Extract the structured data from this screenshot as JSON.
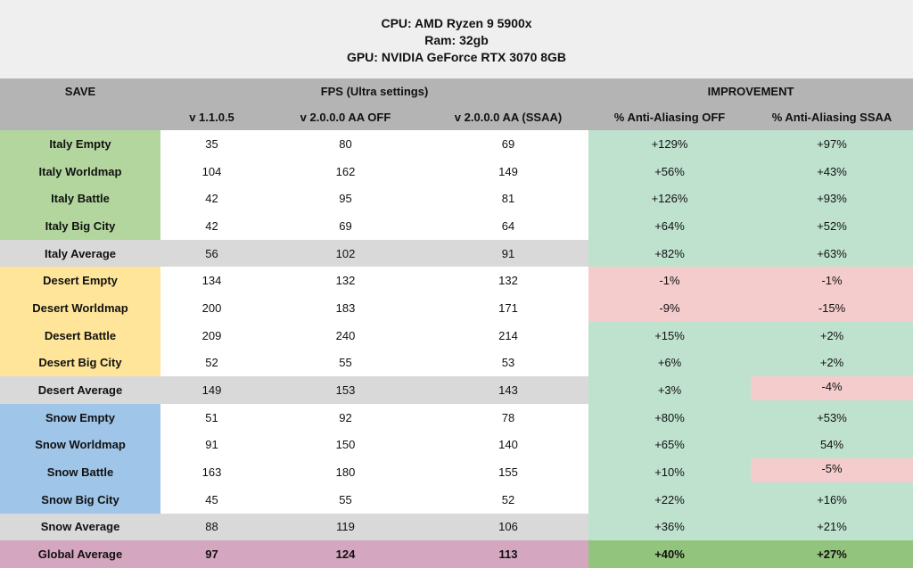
{
  "specs": {
    "cpu": "CPU: AMD Ryzen 9 5900x",
    "ram": "Ram: 32gb",
    "gpu": "GPU: NVIDIA GeForce RTX 3070 8GB"
  },
  "table": {
    "header_groups": {
      "save": "SAVE",
      "fps": "FPS (Ultra settings)",
      "improvement": "IMPROVEMENT"
    },
    "columns": [
      "v 1.1.0.5",
      "v 2.0.0.0 AA OFF",
      "v 2.0.0.0 AA (SSAA)",
      "% Anti-Aliasing OFF",
      "% Anti-Aliasing SSAA"
    ],
    "rows": [
      {
        "label": "Italy Empty",
        "group": "italy",
        "type": "data",
        "fps": [
          "35",
          "80",
          "69"
        ],
        "imp": [
          {
            "value": "+129%",
            "state": "pos"
          },
          {
            "value": "+97%",
            "state": "pos"
          }
        ]
      },
      {
        "label": "Italy Worldmap",
        "group": "italy",
        "type": "data",
        "fps": [
          "104",
          "162",
          "149"
        ],
        "imp": [
          {
            "value": "+56%",
            "state": "pos"
          },
          {
            "value": "+43%",
            "state": "pos"
          }
        ]
      },
      {
        "label": "Italy Battle",
        "group": "italy",
        "type": "data",
        "fps": [
          "42",
          "95",
          "81"
        ],
        "imp": [
          {
            "value": "+126%",
            "state": "pos"
          },
          {
            "value": "+93%",
            "state": "pos"
          }
        ]
      },
      {
        "label": "Italy Big City",
        "group": "italy",
        "type": "data",
        "fps": [
          "42",
          "69",
          "64"
        ],
        "imp": [
          {
            "value": "+64%",
            "state": "pos"
          },
          {
            "value": "+52%",
            "state": "pos"
          }
        ]
      },
      {
        "label": "Italy Average",
        "group": "",
        "type": "average",
        "fps": [
          "56",
          "102",
          "91"
        ],
        "imp": [
          {
            "value": "+82%",
            "state": "pos"
          },
          {
            "value": "+63%",
            "state": "pos"
          }
        ]
      },
      {
        "label": "Desert Empty",
        "group": "desert",
        "type": "data",
        "fps": [
          "134",
          "132",
          "132"
        ],
        "imp": [
          {
            "value": "-1%",
            "state": "neg"
          },
          {
            "value": "-1%",
            "state": "neg"
          }
        ]
      },
      {
        "label": "Desert Worldmap",
        "group": "desert",
        "type": "data",
        "fps": [
          "200",
          "183",
          "171"
        ],
        "imp": [
          {
            "value": "-9%",
            "state": "neg"
          },
          {
            "value": "-15%",
            "state": "neg"
          }
        ]
      },
      {
        "label": "Desert Battle",
        "group": "desert",
        "type": "data",
        "fps": [
          "209",
          "240",
          "214"
        ],
        "imp": [
          {
            "value": "+15%",
            "state": "pos"
          },
          {
            "value": "+2%",
            "state": "pos"
          }
        ]
      },
      {
        "label": "Desert Big City",
        "group": "desert",
        "type": "data",
        "fps": [
          "52",
          "55",
          "53"
        ],
        "imp": [
          {
            "value": "+6%",
            "state": "pos"
          },
          {
            "value": "+2%",
            "state": "pos"
          }
        ]
      },
      {
        "label": "Desert Average",
        "group": "",
        "type": "average",
        "fps": [
          "149",
          "153",
          "143"
        ],
        "imp": [
          {
            "value": "+3%",
            "state": "pos"
          },
          {
            "value": "-4%",
            "state": "neg-inset"
          }
        ]
      },
      {
        "label": "Snow Empty",
        "group": "snow",
        "type": "data",
        "fps": [
          "51",
          "92",
          "78"
        ],
        "imp": [
          {
            "value": "+80%",
            "state": "pos"
          },
          {
            "value": "+53%",
            "state": "pos"
          }
        ]
      },
      {
        "label": "Snow Worldmap",
        "group": "snow",
        "type": "data",
        "fps": [
          "91",
          "150",
          "140"
        ],
        "imp": [
          {
            "value": "+65%",
            "state": "pos"
          },
          {
            "value": "54%",
            "state": "pos"
          }
        ]
      },
      {
        "label": "Snow Battle",
        "group": "snow",
        "type": "data",
        "fps": [
          "163",
          "180",
          "155"
        ],
        "imp": [
          {
            "value": "+10%",
            "state": "pos"
          },
          {
            "value": "-5%",
            "state": "neg-inset"
          }
        ]
      },
      {
        "label": "Snow Big City",
        "group": "snow",
        "type": "data",
        "fps": [
          "45",
          "55",
          "52"
        ],
        "imp": [
          {
            "value": "+22%",
            "state": "pos"
          },
          {
            "value": "+16%",
            "state": "pos"
          }
        ]
      },
      {
        "label": "Snow Average",
        "group": "",
        "type": "average",
        "fps": [
          "88",
          "119",
          "106"
        ],
        "imp": [
          {
            "value": "+36%",
            "state": "pos"
          },
          {
            "value": "+21%",
            "state": "pos"
          }
        ]
      },
      {
        "label": "Global Average",
        "group": "",
        "type": "global",
        "fps": [
          "97",
          "124",
          "113"
        ],
        "imp": [
          {
            "value": "+40%",
            "state": "global-pos"
          },
          {
            "value": "+27%",
            "state": "global-pos"
          }
        ]
      }
    ]
  },
  "colors": {
    "page_background": "#efefef",
    "header_band": "#b4b4b4",
    "italy_label": "#b2d69e",
    "desert_label": "#ffe599",
    "snow_label": "#9fc5e8",
    "average_row": "#d9d9d9",
    "global_average_row": "#d5a6bf",
    "improvement_positive": "#bfe2cf",
    "improvement_negative": "#f4cccc",
    "global_improvement": "#93c47d",
    "data_cell": "#ffffff",
    "text": "#111111"
  },
  "chart_data": {
    "type": "table",
    "title": "FPS (Ultra settings) benchmark — v 1.1.0.5 vs v 2.0.0.0",
    "columns": [
      "SAVE",
      "v 1.1.0.5",
      "v 2.0.0.0 AA OFF",
      "v 2.0.0.0 AA (SSAA)",
      "% Anti-Aliasing OFF",
      "% Anti-Aliasing SSAA"
    ],
    "rows": [
      [
        "Italy Empty",
        35,
        80,
        69,
        "+129%",
        "+97%"
      ],
      [
        "Italy Worldmap",
        104,
        162,
        149,
        "+56%",
        "+43%"
      ],
      [
        "Italy Battle",
        42,
        95,
        81,
        "+126%",
        "+93%"
      ],
      [
        "Italy Big City",
        42,
        69,
        64,
        "+64%",
        "+52%"
      ],
      [
        "Italy Average",
        56,
        102,
        91,
        "+82%",
        "+63%"
      ],
      [
        "Desert Empty",
        134,
        132,
        132,
        "-1%",
        "-1%"
      ],
      [
        "Desert Worldmap",
        200,
        183,
        171,
        "-9%",
        "-15%"
      ],
      [
        "Desert Battle",
        209,
        240,
        214,
        "+15%",
        "+2%"
      ],
      [
        "Desert Big City",
        52,
        55,
        53,
        "+6%",
        "+2%"
      ],
      [
        "Desert Average",
        149,
        153,
        143,
        "+3%",
        "-4%"
      ],
      [
        "Snow Empty",
        51,
        92,
        78,
        "+80%",
        "+53%"
      ],
      [
        "Snow Worldmap",
        91,
        150,
        140,
        "+65%",
        "54%"
      ],
      [
        "Snow Battle",
        163,
        180,
        155,
        "+10%",
        "-5%"
      ],
      [
        "Snow Big City",
        45,
        55,
        52,
        "+22%",
        "+16%"
      ],
      [
        "Snow Average",
        88,
        119,
        106,
        "+36%",
        "+21%"
      ],
      [
        "Global Average",
        97,
        124,
        113,
        "+40%",
        "+27%"
      ]
    ]
  }
}
